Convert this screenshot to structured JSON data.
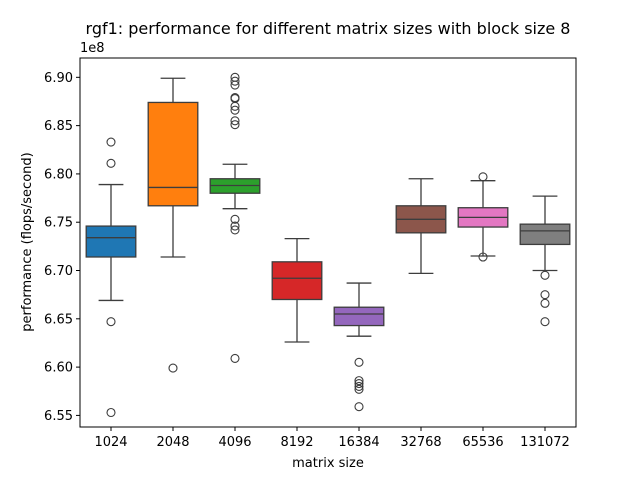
{
  "chart_data": {
    "type": "box",
    "title": "rgf1: performance for different matrix sizes with block size 8",
    "xlabel": "matrix size",
    "ylabel": "performance (flops/second)",
    "y_offset_label": "1e8",
    "ylim": [
      6.538,
      6.92
    ],
    "y_ticks": [
      6.55,
      6.6,
      6.65,
      6.7,
      6.75,
      6.8,
      6.85,
      6.9
    ],
    "y_tick_labels": [
      "6.55",
      "6.60",
      "6.65",
      "6.70",
      "6.75",
      "6.80",
      "6.85",
      "6.90"
    ],
    "categories": [
      "1024",
      "2048",
      "4096",
      "8192",
      "16384",
      "32768",
      "65536",
      "131072"
    ],
    "colors": [
      "#1f77b4",
      "#ff7f0e",
      "#2ca02c",
      "#d62728",
      "#9467bd",
      "#8c564b",
      "#e377c2",
      "#7f7f7f"
    ],
    "boxes": [
      {
        "label": "1024",
        "whisker_low": 6.669,
        "q1": 6.714,
        "median": 6.734,
        "q3": 6.746,
        "whisker_high": 6.789,
        "outliers": [
          6.833,
          6.811,
          6.647,
          6.553
        ]
      },
      {
        "label": "2048",
        "whisker_low": 6.714,
        "q1": 6.767,
        "median": 6.786,
        "q3": 6.874,
        "whisker_high": 6.899,
        "outliers": [
          6.599
        ]
      },
      {
        "label": "4096",
        "whisker_low": 6.764,
        "q1": 6.78,
        "median": 6.788,
        "q3": 6.795,
        "whisker_high": 6.81,
        "outliers": [
          6.9,
          6.896,
          6.892,
          6.879,
          6.878,
          6.87,
          6.866,
          6.855,
          6.851,
          6.753,
          6.746,
          6.742,
          6.609
        ]
      },
      {
        "label": "8192",
        "whisker_low": 6.626,
        "q1": 6.67,
        "median": 6.692,
        "q3": 6.709,
        "whisker_high": 6.733,
        "outliers": []
      },
      {
        "label": "16384",
        "whisker_low": 6.632,
        "q1": 6.643,
        "median": 6.655,
        "q3": 6.662,
        "whisker_high": 6.687,
        "outliers": [
          6.605,
          6.586,
          6.583,
          6.58,
          6.577,
          6.559
        ]
      },
      {
        "label": "32768",
        "whisker_low": 6.697,
        "q1": 6.739,
        "median": 6.753,
        "q3": 6.767,
        "whisker_high": 6.795,
        "outliers": []
      },
      {
        "label": "65536",
        "whisker_low": 6.715,
        "q1": 6.745,
        "median": 6.755,
        "q3": 6.765,
        "whisker_high": 6.793,
        "outliers": [
          6.797,
          6.714
        ]
      },
      {
        "label": "131072",
        "whisker_low": 6.7,
        "q1": 6.727,
        "median": 6.741,
        "q3": 6.748,
        "whisker_high": 6.777,
        "outliers": [
          6.695,
          6.675,
          6.666,
          6.647
        ]
      }
    ]
  }
}
